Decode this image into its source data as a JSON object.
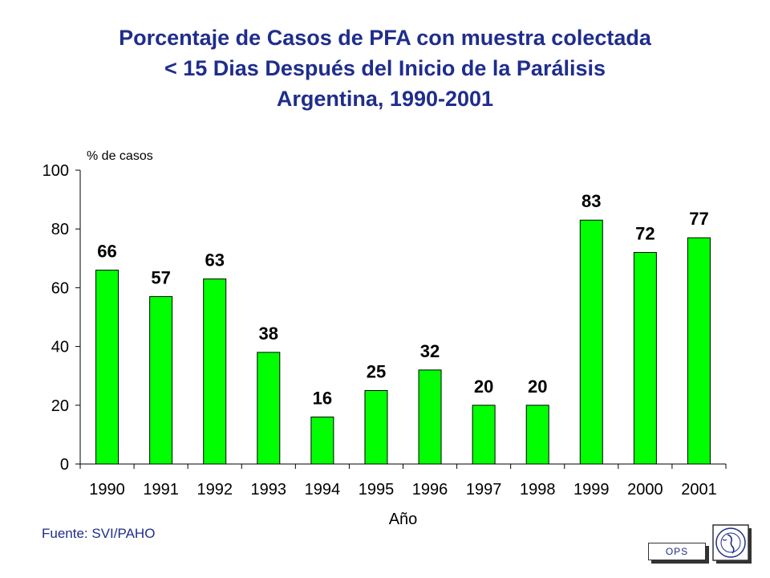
{
  "title_lines": [
    "Porcentaje de Casos de PFA con muestra colectada",
    "< 15 Dias Después del Inicio de la Parálisis",
    "Argentina, 1990-2001"
  ],
  "source": "Fuente: SVI/PAHO",
  "badge": "OPS",
  "colors": {
    "bar": "#00ff00",
    "title": "#1f2d8c",
    "axis": "#000000"
  },
  "chart_data": {
    "type": "bar",
    "title": "Porcentaje de Casos de PFA con muestra colectada < 15 Dias Después del Inicio de la Parálisis Argentina, 1990-2001",
    "xlabel": "Año",
    "ylabel": "% de casos",
    "categories": [
      "1990",
      "1991",
      "1992",
      "1993",
      "1994",
      "1995",
      "1996",
      "1997",
      "1998",
      "1999",
      "2000",
      "2001"
    ],
    "values": [
      66,
      57,
      63,
      38,
      16,
      25,
      32,
      20,
      20,
      83,
      72,
      77
    ],
    "ylim": [
      0,
      100
    ],
    "yticks": [
      0,
      20,
      40,
      60,
      80,
      100
    ],
    "grid": false,
    "legend": "none"
  }
}
